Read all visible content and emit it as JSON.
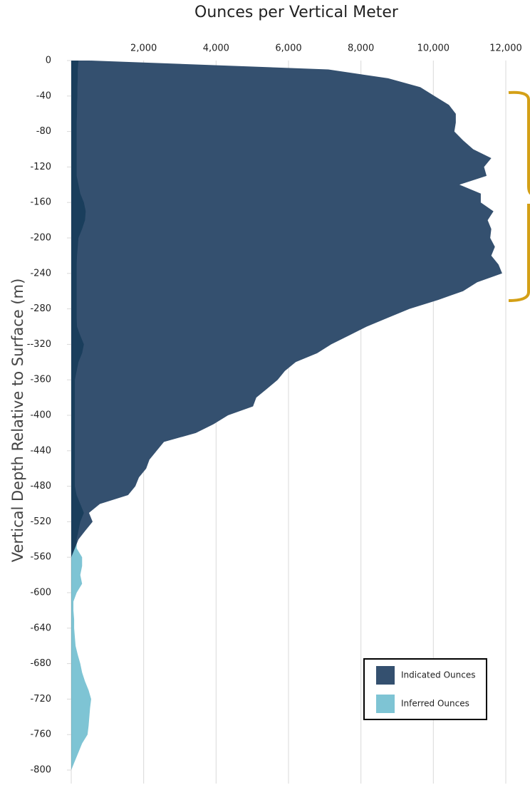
{
  "chart_data": {
    "type": "area",
    "title": "Ounces per Vertical Meter",
    "y_label": "Vertical Depth Relative to Surface (m)",
    "orientation": "horizontal",
    "y": [
      0,
      -10,
      -20,
      -30,
      -40,
      -50,
      -60,
      -70,
      -80,
      -90,
      -100,
      -110,
      -120,
      -130,
      -140,
      -150,
      -160,
      -170,
      -180,
      -190,
      -200,
      -210,
      -220,
      -230,
      -240,
      -250,
      -260,
      -270,
      -280,
      -290,
      -300,
      -310,
      -320,
      -330,
      -340,
      -350,
      -360,
      -370,
      -380,
      -390,
      -400,
      -410,
      -420,
      -430,
      -440,
      -450,
      -460,
      -470,
      -480,
      -490,
      -500,
      -510,
      -520,
      -530,
      -540,
      -550,
      -560,
      -570,
      -580,
      -590,
      -600,
      -610,
      -620,
      -630,
      -640,
      -650,
      -660,
      -670,
      -680,
      -690,
      -700,
      -710,
      -720,
      -730,
      -740,
      -750,
      -760,
      -770,
      -780,
      -790,
      -800
    ],
    "series": [
      {
        "name": "Indicated Ounces",
        "color": "#34506f",
        "values": [
          500,
          7100,
          8750,
          9640,
          10030,
          10430,
          10620,
          10620,
          10580,
          10820,
          11100,
          11600,
          11400,
          11470,
          10720,
          11310,
          11310,
          11660,
          11500,
          11600,
          11570,
          11700,
          11600,
          11800,
          11900,
          11210,
          10820,
          10130,
          9340,
          8750,
          8160,
          7670,
          7180,
          6790,
          6200,
          5900,
          5700,
          5410,
          5110,
          5020,
          4330,
          3930,
          3440,
          2560,
          2360,
          2160,
          2070,
          1870,
          1770,
          1570,
          790,
          490,
          590,
          390,
          200,
          100,
          0,
          0,
          0,
          0,
          0,
          0,
          0,
          0,
          0,
          0,
          0,
          0,
          0,
          0,
          0,
          0,
          0,
          0,
          0,
          0,
          0,
          0,
          0,
          0,
          0
        ]
      },
      {
        "name": "Inferred Ounces",
        "color": "#7ec4d4",
        "values": [
          200,
          180,
          180,
          170,
          170,
          160,
          160,
          150,
          150,
          150,
          150,
          150,
          150,
          150,
          200,
          250,
          350,
          400,
          380,
          300,
          200,
          180,
          160,
          150,
          150,
          150,
          150,
          150,
          150,
          150,
          160,
          250,
          350,
          300,
          200,
          150,
          100,
          100,
          100,
          100,
          100,
          100,
          100,
          100,
          100,
          100,
          100,
          100,
          100,
          150,
          250,
          350,
          250,
          200,
          150,
          150,
          300,
          300,
          250,
          300,
          150,
          60,
          60,
          80,
          80,
          100,
          120,
          180,
          250,
          300,
          380,
          480,
          550,
          520,
          500,
          480,
          450,
          300,
          200,
          100,
          0
        ]
      }
    ],
    "xlim": [
      0,
      12000
    ],
    "xticks": [
      {
        "value": 2000,
        "label": "2,000"
      },
      {
        "value": 4000,
        "label": "4,000"
      },
      {
        "value": 6000,
        "label": "6,000"
      },
      {
        "value": 8000,
        "label": "8,000"
      },
      {
        "value": 10000,
        "label": "10,000"
      },
      {
        "value": 12000,
        "label": "12,000"
      }
    ],
    "ylim": [
      -800,
      0
    ],
    "yticks": [
      0,
      -40,
      -80,
      -120,
      -160,
      -200,
      -240,
      -280,
      {
        "value": -320,
        "label": "--320"
      },
      -360,
      -400,
      -440,
      -480,
      -520,
      -560,
      -600,
      -640,
      -680,
      -720,
      -760,
      -800
    ],
    "grid": true,
    "legend": "lower right"
  }
}
